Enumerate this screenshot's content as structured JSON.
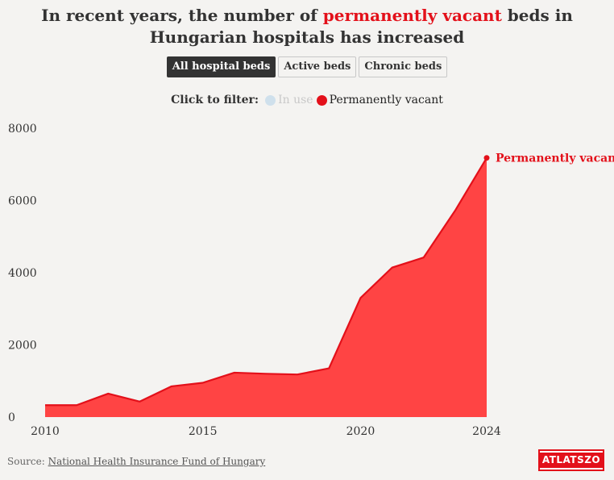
{
  "header": {
    "title_before": "In recent years, the number of ",
    "title_highlight": "permanently vacant",
    "title_after": " beds in Hungarian hospitals has increased"
  },
  "tabs": [
    {
      "label": "All hospital beds",
      "active": true
    },
    {
      "label": "Active beds",
      "active": false
    },
    {
      "label": "Chronic beds",
      "active": false
    }
  ],
  "filter": {
    "label": "Click to filter:",
    "items": [
      {
        "label": "In use",
        "color": "#cfe0ec",
        "active": false
      },
      {
        "label": "Permanently vacant",
        "color": "#e3101a",
        "active": true
      }
    ]
  },
  "chart_data": {
    "type": "area",
    "x": [
      2010,
      2011,
      2012,
      2013,
      2014,
      2015,
      2016,
      2017,
      2018,
      2019,
      2020,
      2021,
      2022,
      2023,
      2024
    ],
    "series": [
      {
        "name": "Permanently vacant",
        "color": "#e3101a",
        "fill": "#ff4444",
        "values": [
          330,
          330,
          650,
          430,
          850,
          950,
          1230,
          1200,
          1180,
          1350,
          3300,
          4140,
          4420,
          5720,
          7180
        ]
      }
    ],
    "end_label": "Permanently vacant",
    "xlim": [
      2010,
      2024
    ],
    "ylim": [
      0,
      8000
    ],
    "yticks": [
      0,
      2000,
      4000,
      6000,
      8000
    ],
    "xticks": [
      2010,
      2015,
      2020,
      2024
    ],
    "grid": false
  },
  "footer": {
    "source_prefix": "Source: ",
    "source_link": "National Health Insurance Fund of Hungary",
    "logo_text": "ATLATSZO"
  }
}
